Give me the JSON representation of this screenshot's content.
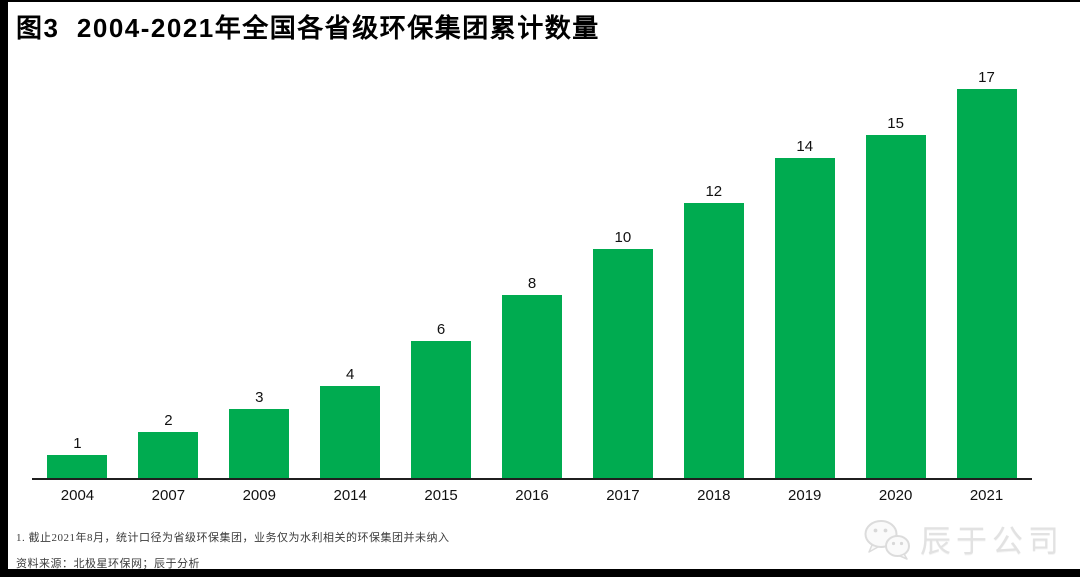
{
  "header": {
    "title": "图3  2004-2021年全国各省级环保集团累计数量"
  },
  "chart_data": {
    "type": "bar",
    "title": "图3  2004-2021年全国各省级环保集团累计数量",
    "categories": [
      "2004",
      "2007",
      "2009",
      "2014",
      "2015",
      "2016",
      "2017",
      "2018",
      "2019",
      "2020",
      "2021"
    ],
    "values": [
      1,
      2,
      3,
      4,
      6,
      8,
      10,
      12,
      14,
      15,
      17
    ],
    "xlabel": "",
    "ylabel": "",
    "ylim": [
      0,
      17
    ],
    "grid": false,
    "legend_position": "none",
    "value_labels": true,
    "bar_color": "#00AB50",
    "axis_color": "#1f1f1f"
  },
  "footnotes": {
    "note1": "1. 截止2021年8月，统计口径为省级环保集团，业务仅为水利相关的环保集团并未纳入",
    "source": "资料来源：北极星环保网；辰于分析"
  },
  "watermark": {
    "icon": "wechat-icon",
    "text": "辰于公司"
  },
  "colors": {
    "bar_green": "#00AB50",
    "frame_black": "#000000",
    "text_black": "#111111",
    "footnote_gray": "#3c3c3c",
    "watermark_gray": "#e2e2e2"
  }
}
